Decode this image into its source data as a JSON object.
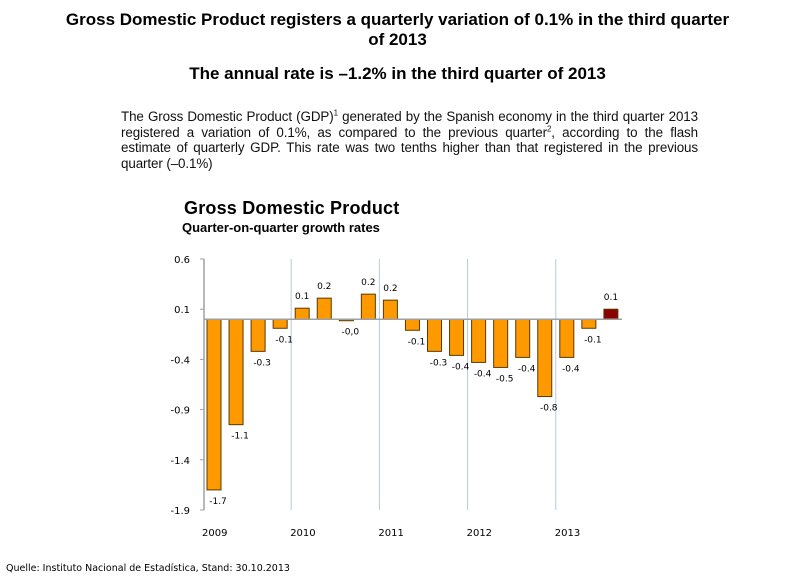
{
  "header": {
    "title": "Gross Domestic Product registers a quarterly variation of 0.1% in the third quarter of 2013",
    "subtitle": "The annual rate is –1.2% in the third quarter of 2013"
  },
  "paragraph": {
    "part1": "The Gross Domestic Product (GDP)",
    "sup1": "1",
    "part2": " generated by the Spanish economy in the third quarter 2013 registered a variation of 0.1%, as compared to the previous quarter",
    "sup2": "2",
    "part3": ", according to the flash estimate of quarterly GDP. This rate was two tenths higher than that registered in the previous quarter (–0.1%)"
  },
  "source": "Quelle: Instituto Nacional de Estadística, Stand: 30.10.2013",
  "chart_data": {
    "type": "bar",
    "title": "Gross Domestic Product",
    "subtitle": "Quarter-on-quarter growth rates",
    "xlabel": "",
    "ylabel": "",
    "ylim": [
      -1.9,
      0.6
    ],
    "yticks": [
      "0.6",
      "0.1",
      "-0.4",
      "-0.9",
      "-1.4",
      "-1.9"
    ],
    "ytick_values": [
      0.6,
      0.1,
      -0.4,
      -0.9,
      -1.4,
      -1.9
    ],
    "year_labels": [
      "2009",
      "2010",
      "2011",
      "2012",
      "2013"
    ],
    "grid": "vertical lines at year boundaries",
    "categories": [
      "2009 Q1",
      "2009 Q2",
      "2009 Q3",
      "2009 Q4",
      "2010 Q1",
      "2010 Q2",
      "2010 Q3",
      "2010 Q4",
      "2011 Q1",
      "2011 Q2",
      "2011 Q3",
      "2011 Q4",
      "2012 Q1",
      "2012 Q2",
      "2012 Q3",
      "2012 Q4",
      "2013 Q1",
      "2013 Q2",
      "2013 Q3"
    ],
    "values": [
      -1.7,
      -1.05,
      -0.32,
      -0.09,
      0.11,
      0.21,
      -0.01,
      0.25,
      0.19,
      -0.11,
      -0.32,
      -0.36,
      -0.43,
      -0.48,
      -0.38,
      -0.77,
      -0.38,
      -0.09,
      0.1
    ],
    "labels": [
      "-1.7",
      "-1.1",
      "-0.3",
      "-0.1",
      "0.1",
      "0.2",
      "-0,0",
      "0.2",
      "0.2",
      "-0.1",
      "-0.3",
      "-0.4",
      "-0.4",
      "-0.5",
      "-0.4",
      "-0.8",
      "-0.4",
      "-0.1",
      "0.1"
    ],
    "colors": {
      "bar": "#FF9900",
      "highlight": "#8B0000",
      "border": "#5a3a00",
      "grid": "#b8c8dc",
      "axis": "#a0a0a0"
    },
    "highlight_index": 18
  }
}
